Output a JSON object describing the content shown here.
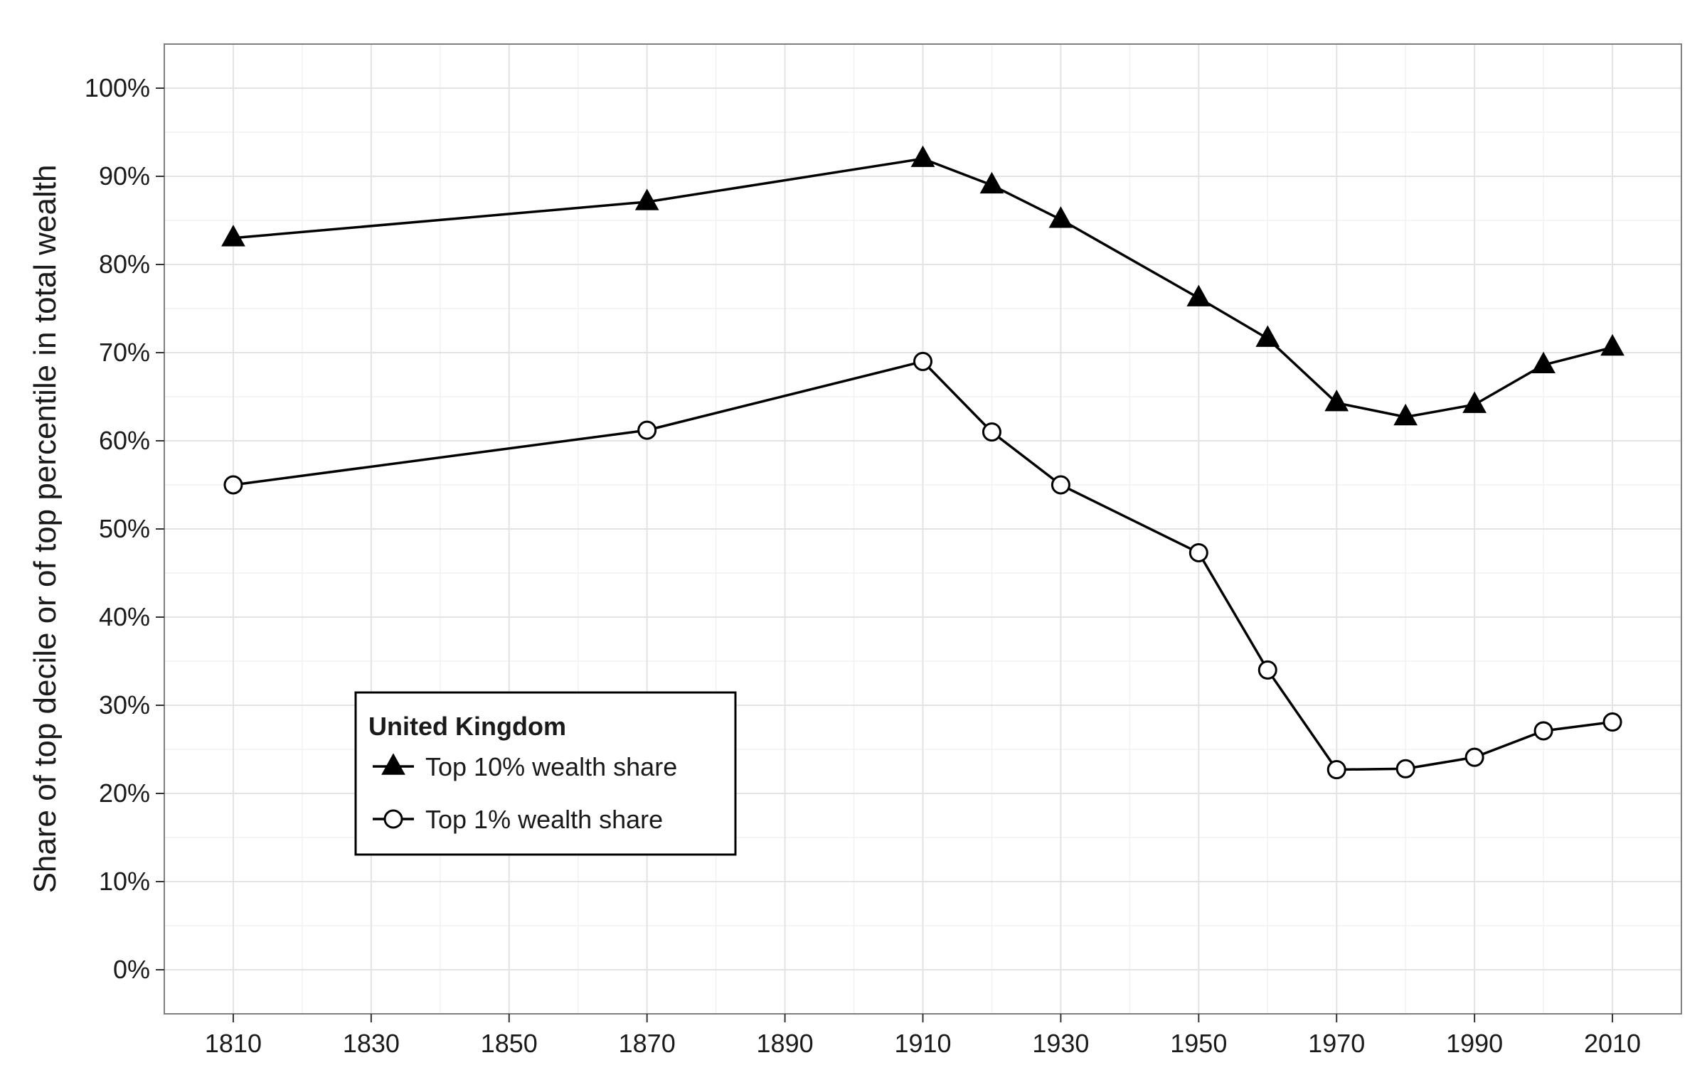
{
  "chart_data": {
    "type": "line",
    "title": "",
    "xlabel": "",
    "ylabel": "Share of top decile or of top percentile in total wealth",
    "xlim": [
      1800,
      2020
    ],
    "ylim": [
      -0.05,
      1.05
    ],
    "x_ticks": [
      1810,
      1830,
      1850,
      1870,
      1890,
      1910,
      1930,
      1950,
      1970,
      1990,
      2010
    ],
    "x_tick_labels": [
      "1810",
      "1830",
      "1850",
      "1870",
      "1890",
      "1910",
      "1930",
      "1950",
      "1970",
      "1990",
      "2010"
    ],
    "y_ticks": [
      0,
      0.1,
      0.2,
      0.3,
      0.4,
      0.5,
      0.6,
      0.7,
      0.8,
      0.9,
      1.0
    ],
    "y_tick_labels": [
      "0%",
      "10%",
      "20%",
      "30%",
      "40%",
      "50%",
      "60%",
      "70%",
      "80%",
      "90%",
      "100%"
    ],
    "grid": true,
    "legend": {
      "title": "United Kingdom",
      "position": "bottom-left"
    },
    "series": [
      {
        "name": "Top 10% wealth share",
        "marker": "filled-triangle",
        "color": "#000000",
        "x": [
          1810,
          1870,
          1910,
          1920,
          1930,
          1950,
          1960,
          1970,
          1980,
          1990,
          2000,
          2010
        ],
        "y": [
          0.83,
          0.871,
          0.92,
          0.89,
          0.851,
          0.762,
          0.716,
          0.643,
          0.627,
          0.641,
          0.686,
          0.706
        ]
      },
      {
        "name": "Top 1% wealth share",
        "marker": "open-circle",
        "color": "#000000",
        "x": [
          1810,
          1870,
          1910,
          1920,
          1930,
          1950,
          1960,
          1970,
          1980,
          1990,
          2000,
          2010
        ],
        "y": [
          0.55,
          0.612,
          0.69,
          0.61,
          0.55,
          0.473,
          0.34,
          0.227,
          0.228,
          0.241,
          0.271,
          0.281
        ]
      }
    ]
  }
}
